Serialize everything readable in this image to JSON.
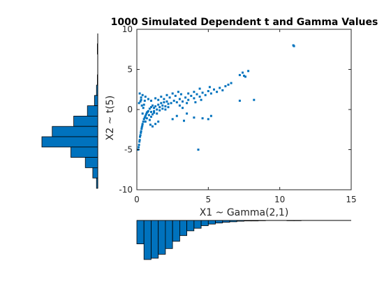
{
  "chart_data": {
    "type": "scatter",
    "title": "1000 Simulated Dependent t and Gamma Values",
    "xlabel": "X1 ~ Gamma(2,1)",
    "ylabel": "X2 ~ t(5)",
    "xlim": [
      0,
      15
    ],
    "ylim": [
      -10,
      10
    ],
    "xticks": [
      "0",
      "5",
      "10",
      "15"
    ],
    "yticks": [
      "10",
      "5",
      "0",
      "-5",
      "-10"
    ],
    "xticks_values": [
      0,
      5,
      10,
      15
    ],
    "yticks_values": [
      10,
      5,
      0,
      -5,
      -10
    ],
    "grid": false,
    "marker_color": "#0072BD",
    "series": [
      {
        "values": [
          [
            0.1,
            -5.0
          ],
          [
            0.15,
            -4.4
          ],
          [
            0.2,
            -3.8
          ],
          [
            0.25,
            -3.2
          ],
          [
            0.3,
            -2.7
          ],
          [
            0.35,
            -2.2
          ],
          [
            0.4,
            -1.8
          ],
          [
            0.12,
            -4.7
          ],
          [
            0.22,
            -3.4
          ],
          [
            0.28,
            -2.9
          ],
          [
            0.18,
            -4.0
          ],
          [
            0.33,
            -2.4
          ],
          [
            0.38,
            -2.0
          ],
          [
            0.45,
            -1.5
          ],
          [
            0.5,
            -1.2
          ],
          [
            0.55,
            -1.0
          ],
          [
            0.6,
            -0.8
          ],
          [
            0.65,
            -0.6
          ],
          [
            0.7,
            -0.4
          ],
          [
            0.75,
            -0.3
          ],
          [
            0.8,
            -0.2
          ],
          [
            0.3,
            1.2
          ],
          [
            0.25,
            1.0
          ],
          [
            0.35,
            0.5
          ],
          [
            0.4,
            -0.5
          ],
          [
            0.45,
            0.2
          ],
          [
            0.5,
            0.6
          ],
          [
            0.55,
            1.1
          ],
          [
            0.6,
            -1.5
          ],
          [
            0.7,
            -1.1
          ],
          [
            0.85,
            -0.7
          ],
          [
            0.9,
            -1.3
          ],
          [
            1.0,
            -0.9
          ],
          [
            1.1,
            -0.6
          ],
          [
            1.2,
            -0.4
          ],
          [
            0.9,
            0.1
          ],
          [
            1.0,
            0.3
          ],
          [
            1.1,
            0.5
          ],
          [
            1.2,
            0.2
          ],
          [
            1.3,
            0.4
          ],
          [
            1.4,
            0.0
          ],
          [
            1.5,
            0.6
          ],
          [
            1.6,
            0.3
          ],
          [
            1.7,
            0.8
          ],
          [
            1.8,
            0.5
          ],
          [
            1.9,
            0.9
          ],
          [
            2.0,
            0.4
          ],
          [
            2.1,
            1.0
          ],
          [
            2.2,
            0.7
          ],
          [
            1.0,
            -0.3
          ],
          [
            1.2,
            -0.2
          ],
          [
            1.4,
            -0.5
          ],
          [
            1.6,
            -0.1
          ],
          [
            1.8,
            0.1
          ],
          [
            2.0,
            0.0
          ],
          [
            2.2,
            0.3
          ],
          [
            2.4,
            0.8
          ],
          [
            2.6,
            1.1
          ],
          [
            2.8,
            0.9
          ],
          [
            3.0,
            1.3
          ],
          [
            3.2,
            1.0
          ],
          [
            3.4,
            1.5
          ],
          [
            3.6,
            1.2
          ],
          [
            3.8,
            1.7
          ],
          [
            4.0,
            1.4
          ],
          [
            4.2,
            1.9
          ],
          [
            4.4,
            1.6
          ],
          [
            4.6,
            2.1
          ],
          [
            4.8,
            1.8
          ],
          [
            5.0,
            2.3
          ],
          [
            5.2,
            2.0
          ],
          [
            5.4,
            2.5
          ],
          [
            5.6,
            2.2
          ],
          [
            5.8,
            2.7
          ],
          [
            6.0,
            2.4
          ],
          [
            6.2,
            2.9
          ],
          [
            6.4,
            3.1
          ],
          [
            6.6,
            3.3
          ],
          [
            7.2,
            4.3
          ],
          [
            7.4,
            4.6
          ],
          [
            7.5,
            4.2
          ],
          [
            7.6,
            4.1
          ],
          [
            7.8,
            4.8
          ],
          [
            7.2,
            1.1
          ],
          [
            8.2,
            1.2
          ],
          [
            10.95,
            8.0
          ],
          [
            11.0,
            7.9
          ],
          [
            4.3,
            -5.0
          ],
          [
            4.6,
            -1.1
          ],
          [
            5.0,
            -1.2
          ],
          [
            5.2,
            -0.8
          ],
          [
            4.0,
            -1.0
          ],
          [
            3.5,
            -0.5
          ],
          [
            3.3,
            -1.4
          ],
          [
            2.8,
            -0.8
          ],
          [
            2.5,
            -1.2
          ],
          [
            1.5,
            -1.5
          ],
          [
            1.3,
            -1.8
          ],
          [
            1.1,
            -2.1
          ],
          [
            0.95,
            -1.9
          ],
          [
            3.0,
            0.5
          ],
          [
            3.2,
            0.2
          ],
          [
            3.5,
            0.8
          ],
          [
            4.1,
            0.9
          ],
          [
            4.5,
            1.2
          ],
          [
            2.3,
            1.5
          ],
          [
            2.7,
            1.7
          ],
          [
            3.1,
            1.9
          ],
          [
            3.6,
            2.0
          ],
          [
            4.0,
            2.2
          ],
          [
            4.4,
            2.6
          ],
          [
            5.1,
            2.8
          ],
          [
            0.2,
            2.0
          ],
          [
            0.3,
            1.5
          ],
          [
            0.4,
            1.8
          ],
          [
            0.15,
            0.8
          ],
          [
            0.6,
            1.6
          ],
          [
            0.8,
            1.3
          ],
          [
            1.0,
            1.1
          ],
          [
            1.3,
            1.4
          ],
          [
            1.5,
            1.2
          ],
          [
            1.7,
            1.6
          ],
          [
            1.9,
            1.3
          ],
          [
            2.1,
            1.8
          ],
          [
            2.5,
            2.0
          ],
          [
            2.9,
            2.2
          ]
        ]
      }
    ],
    "hist_x": {
      "bins": [
        "0–0.5",
        "0.5–1",
        "1–1.5",
        "1.5–2",
        "2–2.5",
        "2.5–3",
        "3–3.5",
        "3.5–4",
        "4–4.5",
        "4.5–5",
        "5–5.5",
        "5.5–6",
        "6–6.5",
        "6.5–7",
        "7–7.5",
        "7.5–8",
        "8–8.5",
        "8.5–9",
        "9–9.5",
        "9.5–10",
        "10–10.5",
        "10.5–11",
        "11–11.5"
      ],
      "counts": [
        90,
        150,
        145,
        130,
        108,
        80,
        58,
        40,
        30,
        20,
        14,
        10,
        7,
        5,
        3,
        2,
        2,
        1,
        0,
        0,
        0,
        1,
        1
      ]
    },
    "hist_y": {
      "bins": [
        "9–10",
        "8–9",
        "7–8",
        "6–7",
        "5–6",
        "4–5",
        "3–4",
        "2–3",
        "1–2",
        "0–1",
        "-1–0",
        "-2–-1",
        "-3–-2",
        "-4–-3",
        "-5–-4"
      ],
      "counts": [
        0,
        1,
        0,
        0,
        1,
        3,
        8,
        25,
        58,
        110,
        135,
        65,
        30,
        12,
        3
      ]
    }
  }
}
